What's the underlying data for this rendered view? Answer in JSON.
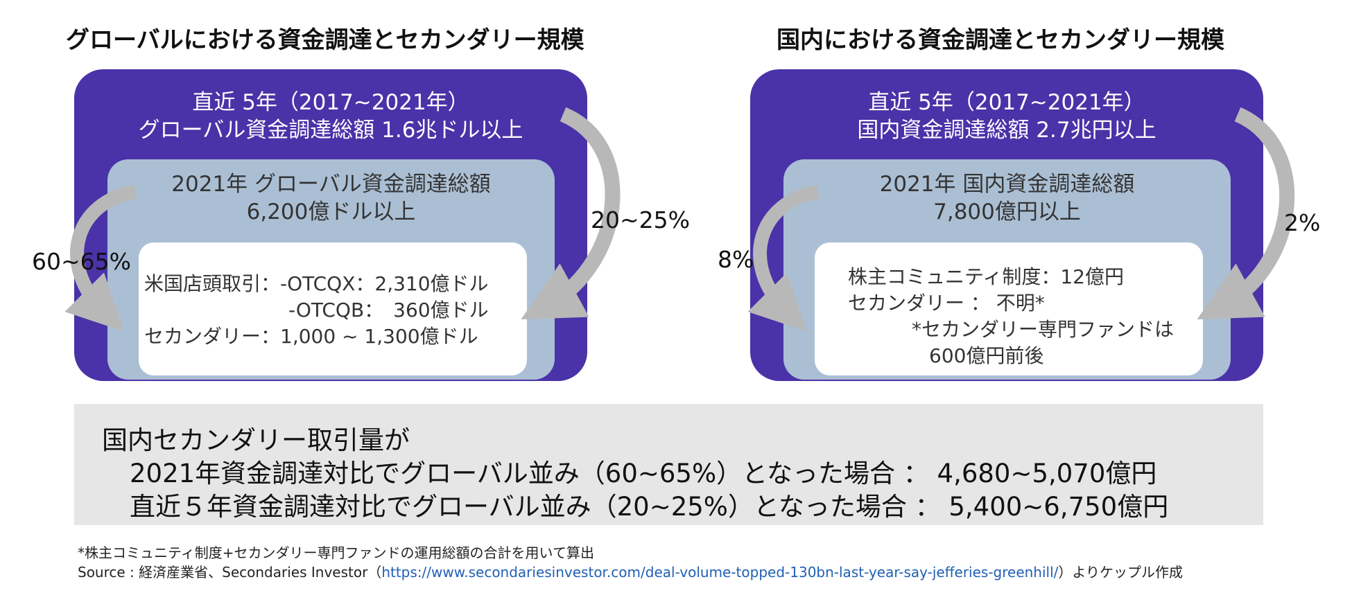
{
  "global": {
    "title": "グローバルにおける資金調達とセカンダリー規模",
    "outer_line1": "直近 5年（2017~2021年）",
    "outer_line2": "グローバル資金調達総額 1.6兆ドル以上",
    "middle_line1": "2021年 グローバル資金調達総額",
    "middle_line2": "6,200億ドル以上",
    "inner_line1": "米国店頭取引：-OTCQX：2,310億ドル",
    "inner_line2": "-OTCQB：　360億ドル",
    "inner_line3": "セカンダリー：1,000 ~ 1,300億ドル",
    "pct_right": "20~25%",
    "pct_left": "60~65%"
  },
  "domestic": {
    "title": "国内における資金調達とセカンダリー規模",
    "outer_line1": "直近 5年（2017~2021年）",
    "outer_line2": "国内資金調達総額 2.7兆円以上",
    "middle_line1": "2021年 国内資金調達総額",
    "middle_line2": "7,800億円以上",
    "inner_line1": "株主コミュニティ制度：12億円",
    "inner_line2": "セカンダリー ： 不明*",
    "inner_line3": "*セカンダリー専門ファンドは",
    "inner_line4": "600億円前後",
    "pct_right": "2%",
    "pct_left": "8%"
  },
  "summary": {
    "line1": "国内セカンダリー取引量が",
    "line2": "2021年資金調達対比でグローバル並み（60~65%）となった場合 ： 4,680~5,070億円",
    "line3": "直近５年資金調達対比でグローバル並み（20~25%）となった場合 ： 5,400~6,750億円"
  },
  "footnotes": {
    "note": "*株主コミュニティ制度+セカンダリー専門ファンドの運用総額の合計を用いて算出",
    "source_prefix": "Source : 経済産業省、Secondaries Investor（",
    "source_url": "https://www.secondariesinvestor.com/deal-volume-topped-130bn-last-year-say-jefferies-greenhill/",
    "source_suffix": "）よりケップル作成"
  },
  "colors": {
    "outer": "#4a32a8",
    "middle": "#abbfd4",
    "inner": "#ffffff",
    "arrow": "#b8b8b8",
    "summary_bg": "#e6e6e6",
    "link": "#1f5fb5"
  }
}
